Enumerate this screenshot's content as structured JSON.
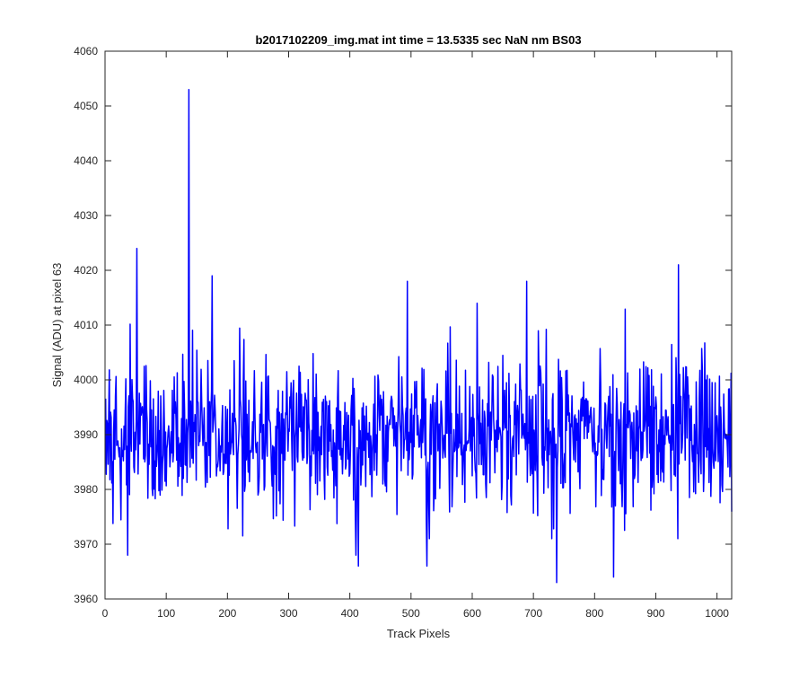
{
  "chart_data": {
    "type": "line",
    "title": "b2017102209_img.mat int time = 13.5335 sec  NaN nm BS03",
    "xlabel": "Track Pixels",
    "ylabel": "Signal (ADU) at pixel 63",
    "xlim": [
      0,
      1024
    ],
    "ylim": [
      3960,
      4060
    ],
    "x_ticks": [
      0,
      100,
      200,
      300,
      400,
      500,
      600,
      700,
      800,
      900,
      1000
    ],
    "y_ticks": [
      3960,
      3970,
      3980,
      3990,
      4000,
      4010,
      4020,
      4030,
      4040,
      4050,
      4060
    ],
    "grid": false,
    "legend": "none",
    "line_color": "#0000ff",
    "series": [
      {
        "x_start": 1,
        "x_step": 1,
        "point_count": 1024,
        "noise_mean": 3990,
        "noise_std": 7,
        "notable_points": [
          {
            "x": 52,
            "y": 4024
          },
          {
            "x": 137,
            "y": 4053
          },
          {
            "x": 175,
            "y": 4019
          },
          {
            "x": 37,
            "y": 3968
          },
          {
            "x": 410,
            "y": 3968
          },
          {
            "x": 414,
            "y": 3966
          },
          {
            "x": 526,
            "y": 3966
          },
          {
            "x": 738,
            "y": 3963
          },
          {
            "x": 831,
            "y": 3964
          },
          {
            "x": 937,
            "y": 4021
          },
          {
            "x": 494,
            "y": 4018
          },
          {
            "x": 689,
            "y": 4018
          }
        ]
      }
    ]
  }
}
